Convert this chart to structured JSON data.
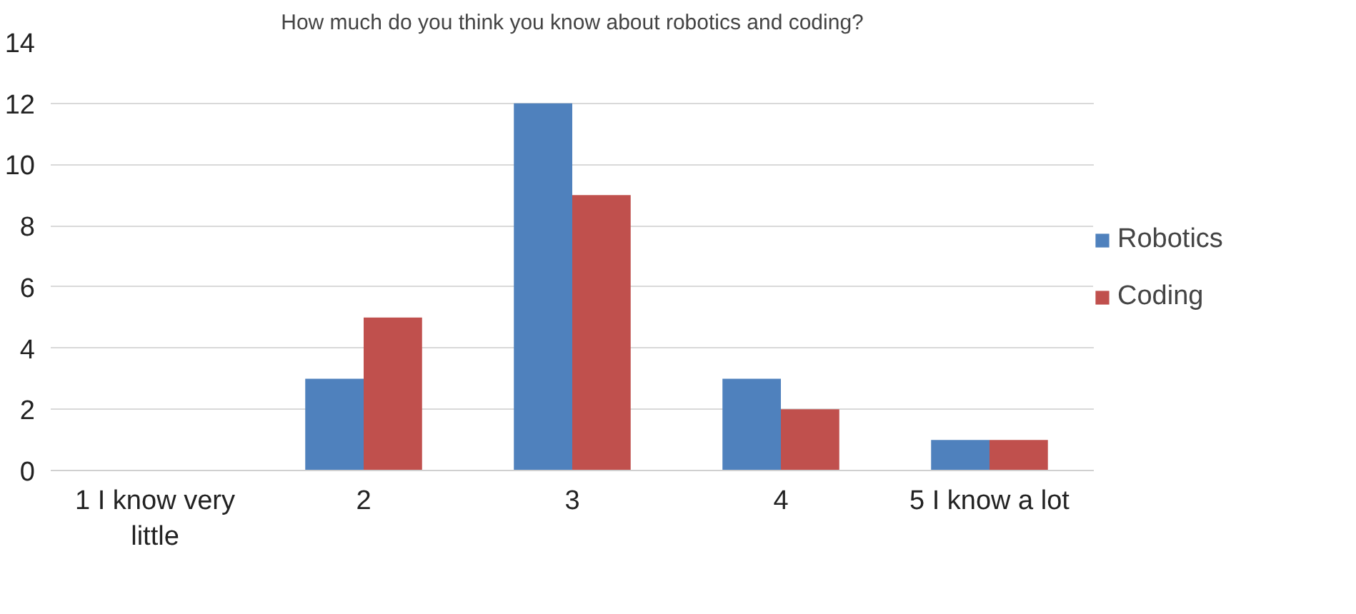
{
  "chart_data": {
    "type": "bar",
    "title": "How much do you think you know about robotics and coding?",
    "categories": [
      "1 I know very little",
      "2",
      "3",
      "4",
      "5 I know a lot"
    ],
    "series": [
      {
        "name": "Robotics",
        "color": "#4f81bd",
        "values": [
          0,
          3,
          12,
          3,
          1
        ]
      },
      {
        "name": "Coding",
        "color": "#c0504d",
        "values": [
          0,
          5,
          9,
          2,
          1
        ]
      }
    ],
    "ylim": [
      0,
      14
    ],
    "yticks": [
      0,
      2,
      4,
      6,
      8,
      10,
      12,
      14
    ],
    "grid": "y",
    "legend": "right"
  }
}
